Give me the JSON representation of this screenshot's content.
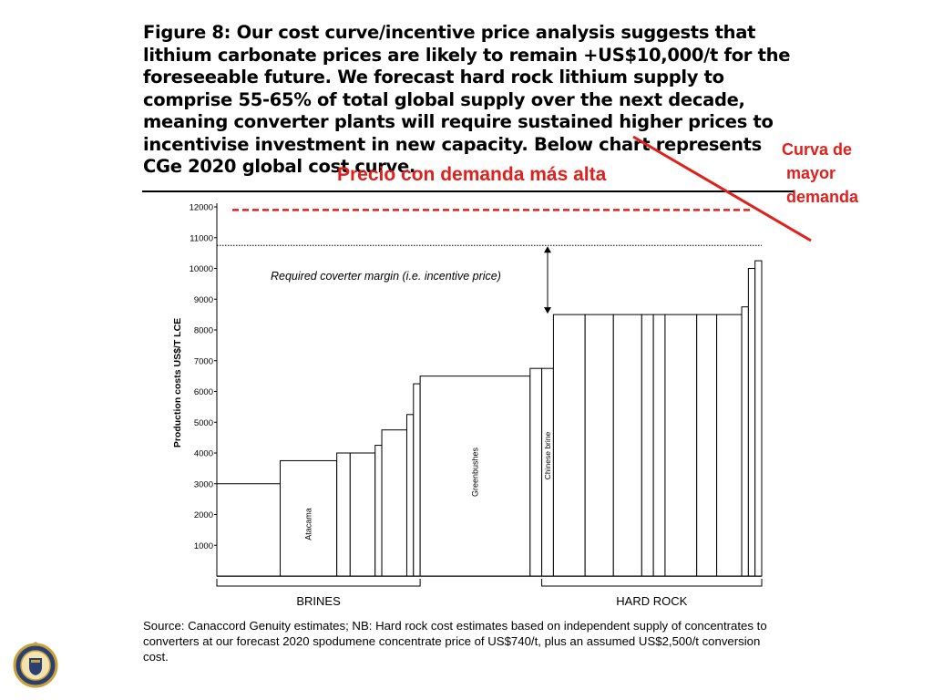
{
  "figure": {
    "title": "Figure 8: Our cost curve/incentive price analysis suggests that lithium carbonate prices are likely to remain +US$10,000/t for the foreseeable future. We forecast hard rock lithium supply to comprise 55-65% of total global supply over the next decade, meaning converter plants will require sustained higher prices to incentivise investment in new capacity. Below chart represents CGe 2020 global cost curve.",
    "source": "Source: Canaccord Genuity estimates; NB: Hard rock cost estimates based on independent supply of concentrates to converters at our forecast 2020 spodumene concentrate price of US$740/t, plus an assumed US$2,500/t conversion cost."
  },
  "annotations": {
    "higher_price": "Precio con demanda más alta",
    "curve_higher_demand": "Curva de\n mayor\n demanda",
    "color": "#e0201c"
  },
  "chart_data": {
    "type": "bar",
    "subtype": "cost-curve",
    "ylabel": "Production costs US$/T LCE",
    "xlabel": "",
    "ylim": [
      0,
      12000
    ],
    "yticks": [
      1000,
      2000,
      3000,
      4000,
      5000,
      6000,
      7000,
      8000,
      9000,
      10000,
      11000,
      12000
    ],
    "steps": [
      {
        "label": "",
        "value": 3000,
        "width": 1.9
      },
      {
        "label": "Atacama",
        "value": 3750,
        "width": 1.7
      },
      {
        "label": "",
        "value": 4000,
        "width": 0.4
      },
      {
        "label": "",
        "value": 4000,
        "width": 0.75
      },
      {
        "label": "",
        "value": 4250,
        "width": 0.2
      },
      {
        "label": "",
        "value": 4750,
        "width": 0.75
      },
      {
        "label": "",
        "value": 5250,
        "width": 0.2
      },
      {
        "label": "",
        "value": 6250,
        "width": 0.2
      },
      {
        "label": "Greenbushes",
        "value": 6500,
        "width": 3.3
      },
      {
        "label": "",
        "value": 6750,
        "width": 0.35
      },
      {
        "label": "Chinese brine",
        "value": 6750,
        "width": 0.35
      },
      {
        "label": "",
        "value": 8500,
        "width": 0.95
      },
      {
        "label": "",
        "value": 8500,
        "width": 0.85
      },
      {
        "label": "",
        "value": 8500,
        "width": 0.85
      },
      {
        "label": "",
        "value": 8500,
        "width": 0.35
      },
      {
        "label": "",
        "value": 8500,
        "width": 0.35
      },
      {
        "label": "",
        "value": 8500,
        "width": 0.95
      },
      {
        "label": "",
        "value": 8500,
        "width": 0.6
      },
      {
        "label": "",
        "value": 8500,
        "width": 0.75
      },
      {
        "label": "",
        "value": 8750,
        "width": 0.2
      },
      {
        "label": "",
        "value": 10000,
        "width": 0.2
      },
      {
        "label": "",
        "value": 10250,
        "width": 0.2
      }
    ],
    "incentive_price": 10750,
    "incentive_label": "Required coverter margin (i.e. incentive price)",
    "higher_demand_price": 11900,
    "groups": [
      {
        "label": "BRINES",
        "from_step": 0,
        "to_step": 7
      },
      {
        "label": "HARD ROCK",
        "from_step": 10,
        "to_step": 21
      }
    ],
    "grid": false,
    "legend": "none"
  }
}
